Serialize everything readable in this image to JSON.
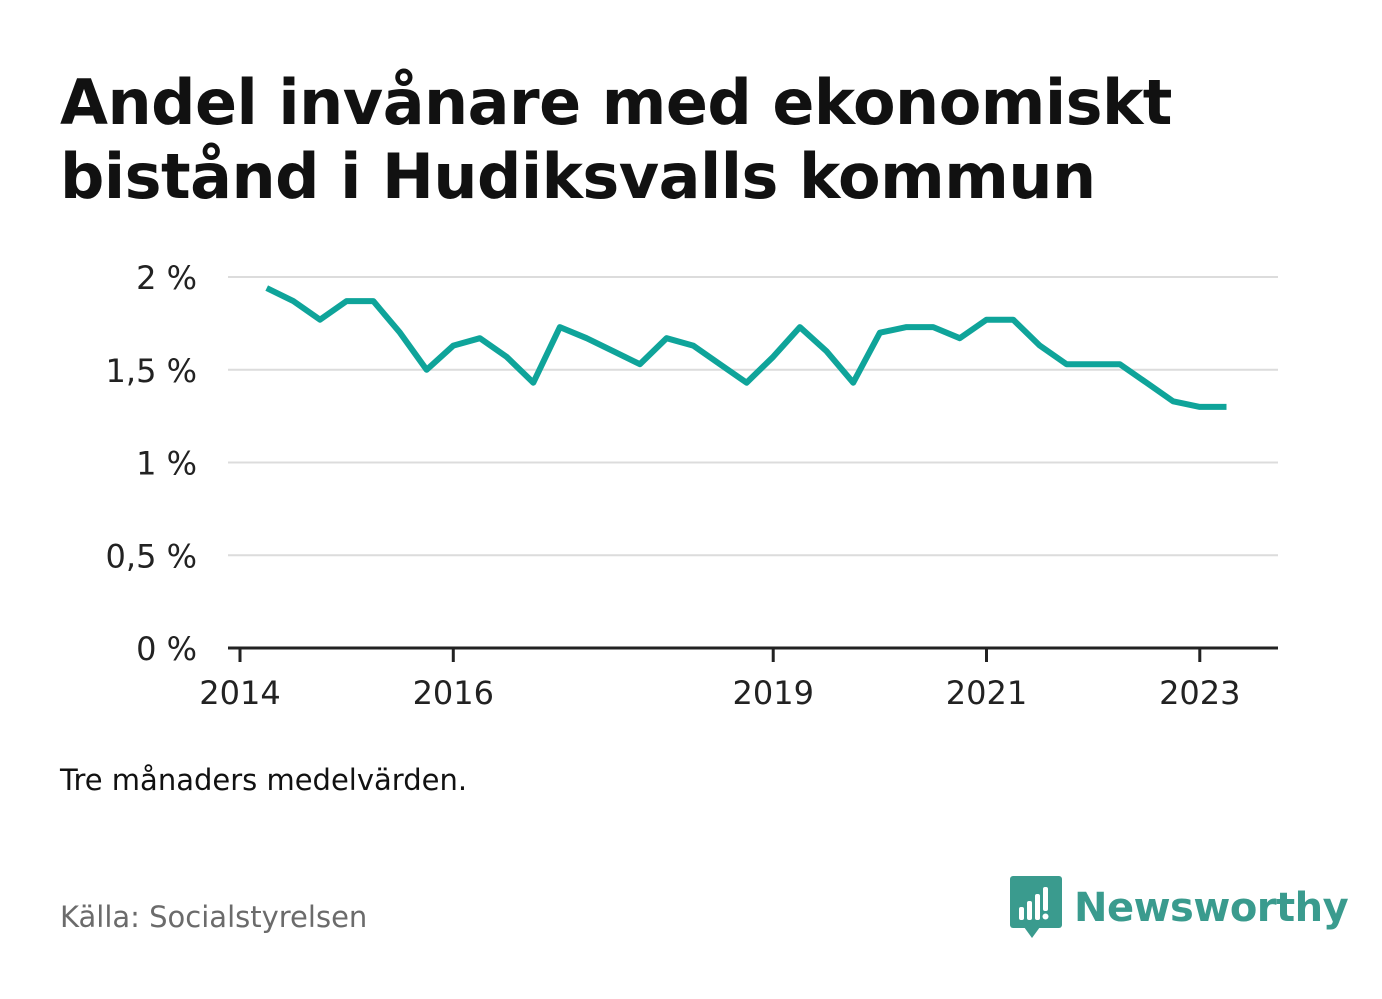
{
  "title": "Andel invånare med ekonomiskt bistånd i Hudiksvalls kommun",
  "note": "Tre månaders medelvärden.",
  "source": "Källa: Socialstyrelsen",
  "brand": {
    "name": "Newsworthy",
    "icon": "newsworthy-logo-icon",
    "color": "#3a9b8e"
  },
  "chart_data": {
    "type": "line",
    "title": "Andel invånare med ekonomiskt bistånd i Hudiksvalls kommun",
    "xlabel": "",
    "ylabel": "",
    "x_ticks": [
      "2014",
      "2016",
      "2019",
      "2021",
      "2023"
    ],
    "y_ticks": [
      "0 %",
      "0,5 %",
      "1 %",
      "1,5 %",
      "2 %"
    ],
    "y_tick_values": [
      0,
      0.5,
      1,
      1.5,
      2
    ],
    "ylim": [
      0,
      2
    ],
    "xlim": [
      "2014-01",
      "2023-08"
    ],
    "grid": true,
    "line_color": "#0fa49a",
    "series": [
      {
        "x": [
          "2014-04",
          "2014-07",
          "2014-10",
          "2015-01",
          "2015-04",
          "2015-07",
          "2015-10",
          "2016-01",
          "2016-04",
          "2016-07",
          "2016-10",
          "2017-01",
          "2017-04",
          "2017-07",
          "2017-10",
          "2018-01",
          "2018-04",
          "2018-07",
          "2018-10",
          "2019-01",
          "2019-04",
          "2019-07",
          "2019-10",
          "2020-01",
          "2020-04",
          "2020-07",
          "2020-10",
          "2021-01",
          "2021-04",
          "2021-07",
          "2021-10",
          "2022-01",
          "2022-04",
          "2022-07",
          "2022-10",
          "2023-01",
          "2023-04"
        ],
        "values": [
          1.94,
          1.87,
          1.77,
          1.87,
          1.87,
          1.7,
          1.5,
          1.63,
          1.67,
          1.57,
          1.43,
          1.73,
          1.67,
          1.6,
          1.53,
          1.67,
          1.63,
          1.53,
          1.43,
          1.57,
          1.73,
          1.6,
          1.43,
          1.7,
          1.73,
          1.73,
          1.67,
          1.77,
          1.77,
          1.63,
          1.53,
          1.53,
          1.53,
          1.43,
          1.33,
          1.3,
          1.3
        ]
      }
    ]
  }
}
